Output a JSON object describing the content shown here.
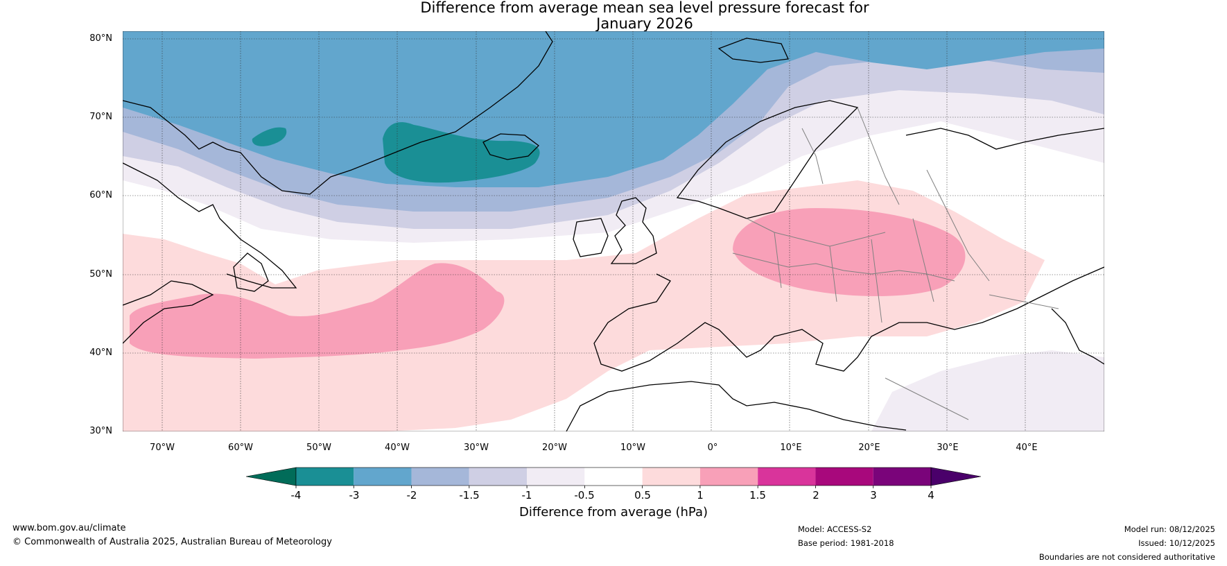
{
  "title": {
    "line1": "Difference from average mean sea level pressure forecast for",
    "line2": "January 2026"
  },
  "latitude_labels": [
    "80°N",
    "70°N",
    "60°N",
    "50°N",
    "40°N",
    "30°N"
  ],
  "longitude_labels": [
    "70°W",
    "60°W",
    "50°W",
    "40°W",
    "30°W",
    "20°W",
    "10°W",
    "0°",
    "10°E",
    "20°E",
    "30°E",
    "40°E"
  ],
  "colorbar": {
    "ticks": [
      "-4",
      "-3",
      "-2",
      "-1.5",
      "-1",
      "-0.5",
      "0.5",
      "1",
      "1.5",
      "2",
      "3",
      "4"
    ],
    "colors": [
      "#1a8f95",
      "#62a6cd",
      "#a5b7d9",
      "#cfcfe4",
      "#f1ecf4",
      "#ffffff",
      "#fddbdc",
      "#f8a0b8",
      "#d9349b",
      "#a8087c",
      "#7a047a"
    ],
    "under_color": "#016c59",
    "over_color": "#4a006a",
    "label": "Difference from average (hPa)"
  },
  "footer": {
    "website": "www.bom.gov.au/climate",
    "copyright": "© Commonwealth of Australia 2025, Australian Bureau of Meteorology",
    "model": "Model: ACCESS-S2",
    "base_period": "Base period: 1981-2018",
    "model_run": "Model run: 08/12/2025",
    "issued": "Issued: 10/12/2025",
    "disclaimer": "Boundaries are not considered authoritative"
  }
}
